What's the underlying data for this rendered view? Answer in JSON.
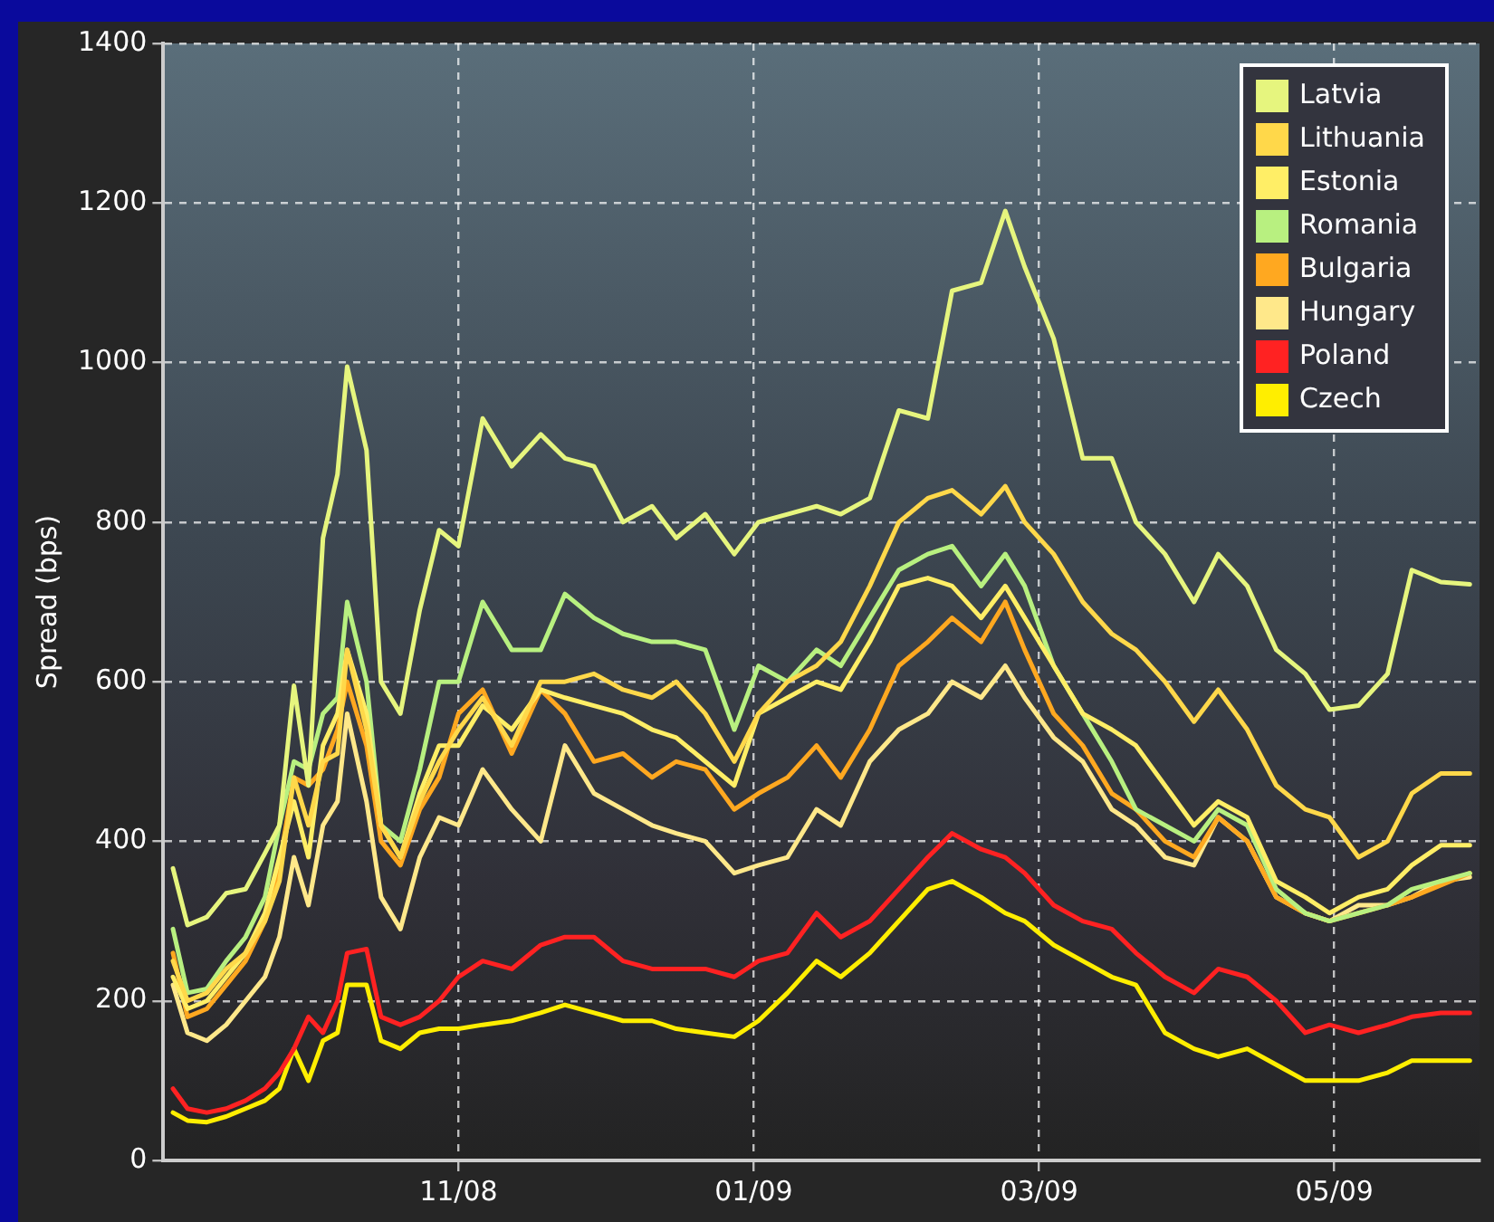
{
  "chart_data": {
    "type": "line",
    "ylabel": "Spread (bps)",
    "x": [
      "2008-09-03",
      "2008-09-06",
      "2008-09-10",
      "2008-09-14",
      "2008-09-18",
      "2008-09-22",
      "2008-09-25",
      "2008-09-28",
      "2008-10-01",
      "2008-10-04",
      "2008-10-07",
      "2008-10-09",
      "2008-10-13",
      "2008-10-16",
      "2008-10-20",
      "2008-10-24",
      "2008-10-28",
      "2008-11-01",
      "2008-11-06",
      "2008-11-12",
      "2008-11-18",
      "2008-11-23",
      "2008-11-29",
      "2008-12-05",
      "2008-12-11",
      "2008-12-16",
      "2008-12-22",
      "2008-12-28",
      "2009-01-02",
      "2009-01-08",
      "2009-01-14",
      "2009-01-19",
      "2009-01-25",
      "2009-01-31",
      "2009-02-06",
      "2009-02-11",
      "2009-02-17",
      "2009-02-22",
      "2009-02-26",
      "2009-03-04",
      "2009-03-10",
      "2009-03-16",
      "2009-03-21",
      "2009-03-27",
      "2009-04-02",
      "2009-04-07",
      "2009-04-13",
      "2009-04-19",
      "2009-04-25",
      "2009-04-30",
      "2009-05-06",
      "2009-05-12",
      "2009-05-17",
      "2009-05-23",
      "2009-05-29"
    ],
    "series": [
      {
        "name": "Latvia",
        "color": "#e6f57e",
        "values": [
          366,
          295,
          305,
          335,
          340,
          385,
          420,
          595,
          470,
          780,
          860,
          995,
          890,
          600,
          560,
          690,
          790,
          770,
          930,
          870,
          910,
          880,
          870,
          800,
          820,
          780,
          810,
          760,
          800,
          810,
          820,
          810,
          830,
          940,
          930,
          1090,
          1100,
          1190,
          1120,
          1030,
          880,
          880,
          800,
          760,
          700,
          760,
          720,
          640,
          610,
          565,
          570,
          610,
          740,
          725,
          722
        ]
      },
      {
        "name": "Lithuania",
        "color": "#ffd84a",
        "values": [
          250,
          200,
          210,
          240,
          260,
          300,
          350,
          480,
          420,
          500,
          510,
          640,
          540,
          420,
          380,
          450,
          500,
          540,
          580,
          520,
          600,
          600,
          610,
          590,
          580,
          600,
          560,
          500,
          560,
          600,
          620,
          650,
          720,
          800,
          830,
          840,
          810,
          845,
          800,
          760,
          700,
          660,
          640,
          600,
          550,
          590,
          540,
          470,
          440,
          430,
          380,
          400,
          460,
          485,
          485
        ]
      },
      {
        "name": "Estonia",
        "color": "#ffee66",
        "values": [
          230,
          190,
          200,
          230,
          260,
          310,
          380,
          450,
          380,
          520,
          560,
          640,
          560,
          420,
          380,
          460,
          520,
          520,
          570,
          540,
          590,
          580,
          570,
          560,
          540,
          530,
          500,
          470,
          560,
          580,
          600,
          590,
          650,
          720,
          730,
          720,
          680,
          720,
          680,
          620,
          560,
          540,
          520,
          470,
          420,
          450,
          430,
          350,
          330,
          310,
          330,
          340,
          370,
          395,
          395
        ]
      },
      {
        "name": "Romania",
        "color": "#b8f080",
        "values": [
          290,
          210,
          215,
          250,
          280,
          330,
          420,
          500,
          490,
          560,
          580,
          700,
          600,
          420,
          400,
          490,
          600,
          600,
          700,
          640,
          640,
          710,
          680,
          660,
          650,
          650,
          640,
          540,
          620,
          600,
          640,
          620,
          680,
          740,
          760,
          770,
          720,
          760,
          720,
          620,
          560,
          500,
          440,
          420,
          400,
          440,
          420,
          340,
          310,
          300,
          310,
          320,
          340,
          350,
          360
        ]
      },
      {
        "name": "Bulgaria",
        "color": "#ffa820",
        "values": [
          260,
          180,
          190,
          220,
          250,
          300,
          370,
          480,
          470,
          490,
          540,
          600,
          520,
          400,
          370,
          440,
          480,
          560,
          590,
          510,
          590,
          560,
          500,
          510,
          480,
          500,
          490,
          440,
          460,
          480,
          520,
          480,
          540,
          620,
          650,
          680,
          650,
          700,
          640,
          560,
          520,
          460,
          440,
          400,
          380,
          430,
          400,
          330,
          310,
          300,
          310,
          320,
          330,
          345,
          360
        ]
      },
      {
        "name": "Hungary",
        "color": "#ffe88a",
        "values": [
          220,
          160,
          150,
          170,
          200,
          230,
          280,
          380,
          320,
          420,
          450,
          560,
          450,
          330,
          290,
          380,
          430,
          420,
          490,
          440,
          400,
          520,
          460,
          440,
          420,
          410,
          400,
          360,
          370,
          380,
          440,
          420,
          500,
          540,
          560,
          600,
          580,
          620,
          580,
          530,
          500,
          440,
          420,
          380,
          370,
          430,
          400,
          330,
          310,
          300,
          320,
          320,
          330,
          350,
          355
        ]
      },
      {
        "name": "Poland",
        "color": "#ff2222",
        "values": [
          90,
          65,
          60,
          65,
          75,
          90,
          110,
          140,
          180,
          160,
          200,
          260,
          265,
          180,
          170,
          180,
          200,
          230,
          250,
          240,
          270,
          280,
          280,
          250,
          240,
          240,
          240,
          230,
          250,
          260,
          310,
          280,
          300,
          340,
          380,
          410,
          390,
          380,
          360,
          320,
          300,
          290,
          260,
          230,
          210,
          240,
          230,
          200,
          160,
          170,
          160,
          170,
          180,
          185,
          185
        ]
      },
      {
        "name": "Czech",
        "color": "#ffee00",
        "values": [
          60,
          50,
          48,
          55,
          65,
          75,
          90,
          140,
          100,
          150,
          160,
          220,
          220,
          150,
          140,
          160,
          165,
          165,
          170,
          175,
          185,
          195,
          185,
          175,
          175,
          165,
          160,
          155,
          175,
          210,
          250,
          230,
          260,
          300,
          340,
          350,
          330,
          310,
          300,
          270,
          250,
          230,
          220,
          160,
          140,
          130,
          140,
          120,
          100,
          100,
          100,
          110,
          125,
          125,
          125
        ]
      }
    ],
    "xlim": [
      "2008-09-01",
      "2009-05-31"
    ],
    "xticks": [
      {
        "value": "2008-11-01",
        "label": "11/08"
      },
      {
        "value": "2009-01-01",
        "label": "01/09"
      },
      {
        "value": "2009-03-01",
        "label": "03/09"
      },
      {
        "value": "2009-05-01",
        "label": "05/09"
      }
    ],
    "ylim": [
      0,
      1400
    ],
    "yticks": [
      0,
      200,
      400,
      600,
      800,
      1000,
      1200,
      1400
    ],
    "grid": true,
    "legend": "top right",
    "line_style": "solid",
    "marker": "none"
  }
}
